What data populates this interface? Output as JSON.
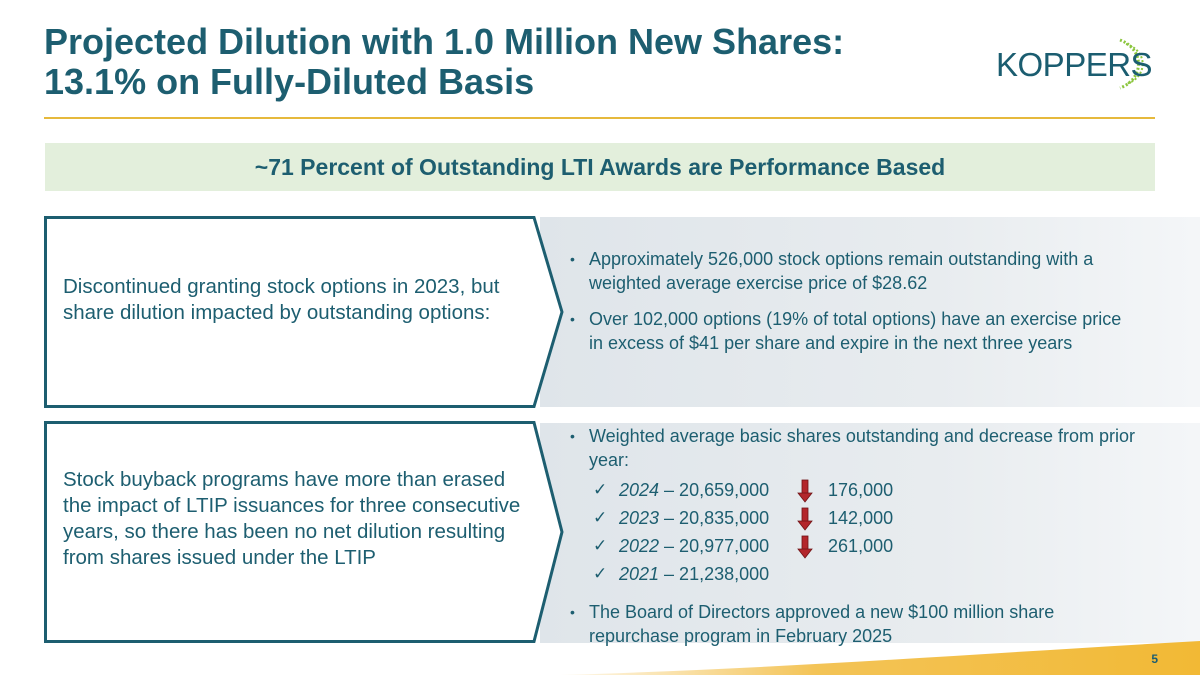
{
  "slide": {
    "title_line1": "Projected Dilution with 1.0 Million New Shares:",
    "title_line2": "13.1% on Fully-Diluted Basis",
    "logo_text": "KOPPERS",
    "banner": "~71 Percent of Outstanding LTI Awards are Performance Based",
    "page_number": "5"
  },
  "section1": {
    "heading": "Discontinued granting stock options in 2023, but share dilution impacted by outstanding options:",
    "bullets": [
      "Approximately 526,000 stock options remain outstanding with a weighted average exercise price of $28.62",
      "Over 102,000 options (19% of total options) have an exercise price in excess of $41 per share and expire in the next three years"
    ]
  },
  "section2": {
    "heading": "Stock buyback programs have more than erased the impact of LTIP issuances for three consecutive years, so there has been no net dilution resulting from shares issued under the LTIP",
    "bullet1": "Weighted average basic shares outstanding and decrease from prior year:",
    "years": [
      {
        "year": "2024",
        "shares": " – 20,659,000",
        "decrease": "176,000"
      },
      {
        "year": "2023",
        "shares": " – 20,835,000",
        "decrease": "142,000"
      },
      {
        "year": "2022",
        "shares": " – 20,977,000",
        "decrease": "261,000"
      },
      {
        "year": "2021",
        "shares": " – 21,238,000"
      }
    ],
    "bullet2": "The Board of Directors approved a new $100 million share repurchase program in February 2025"
  },
  "colors": {
    "title": "#1d5e70",
    "accent_gold": "#e6b93c",
    "banner_bg": "#e3efdc",
    "arrow_red": "#b3262b"
  }
}
